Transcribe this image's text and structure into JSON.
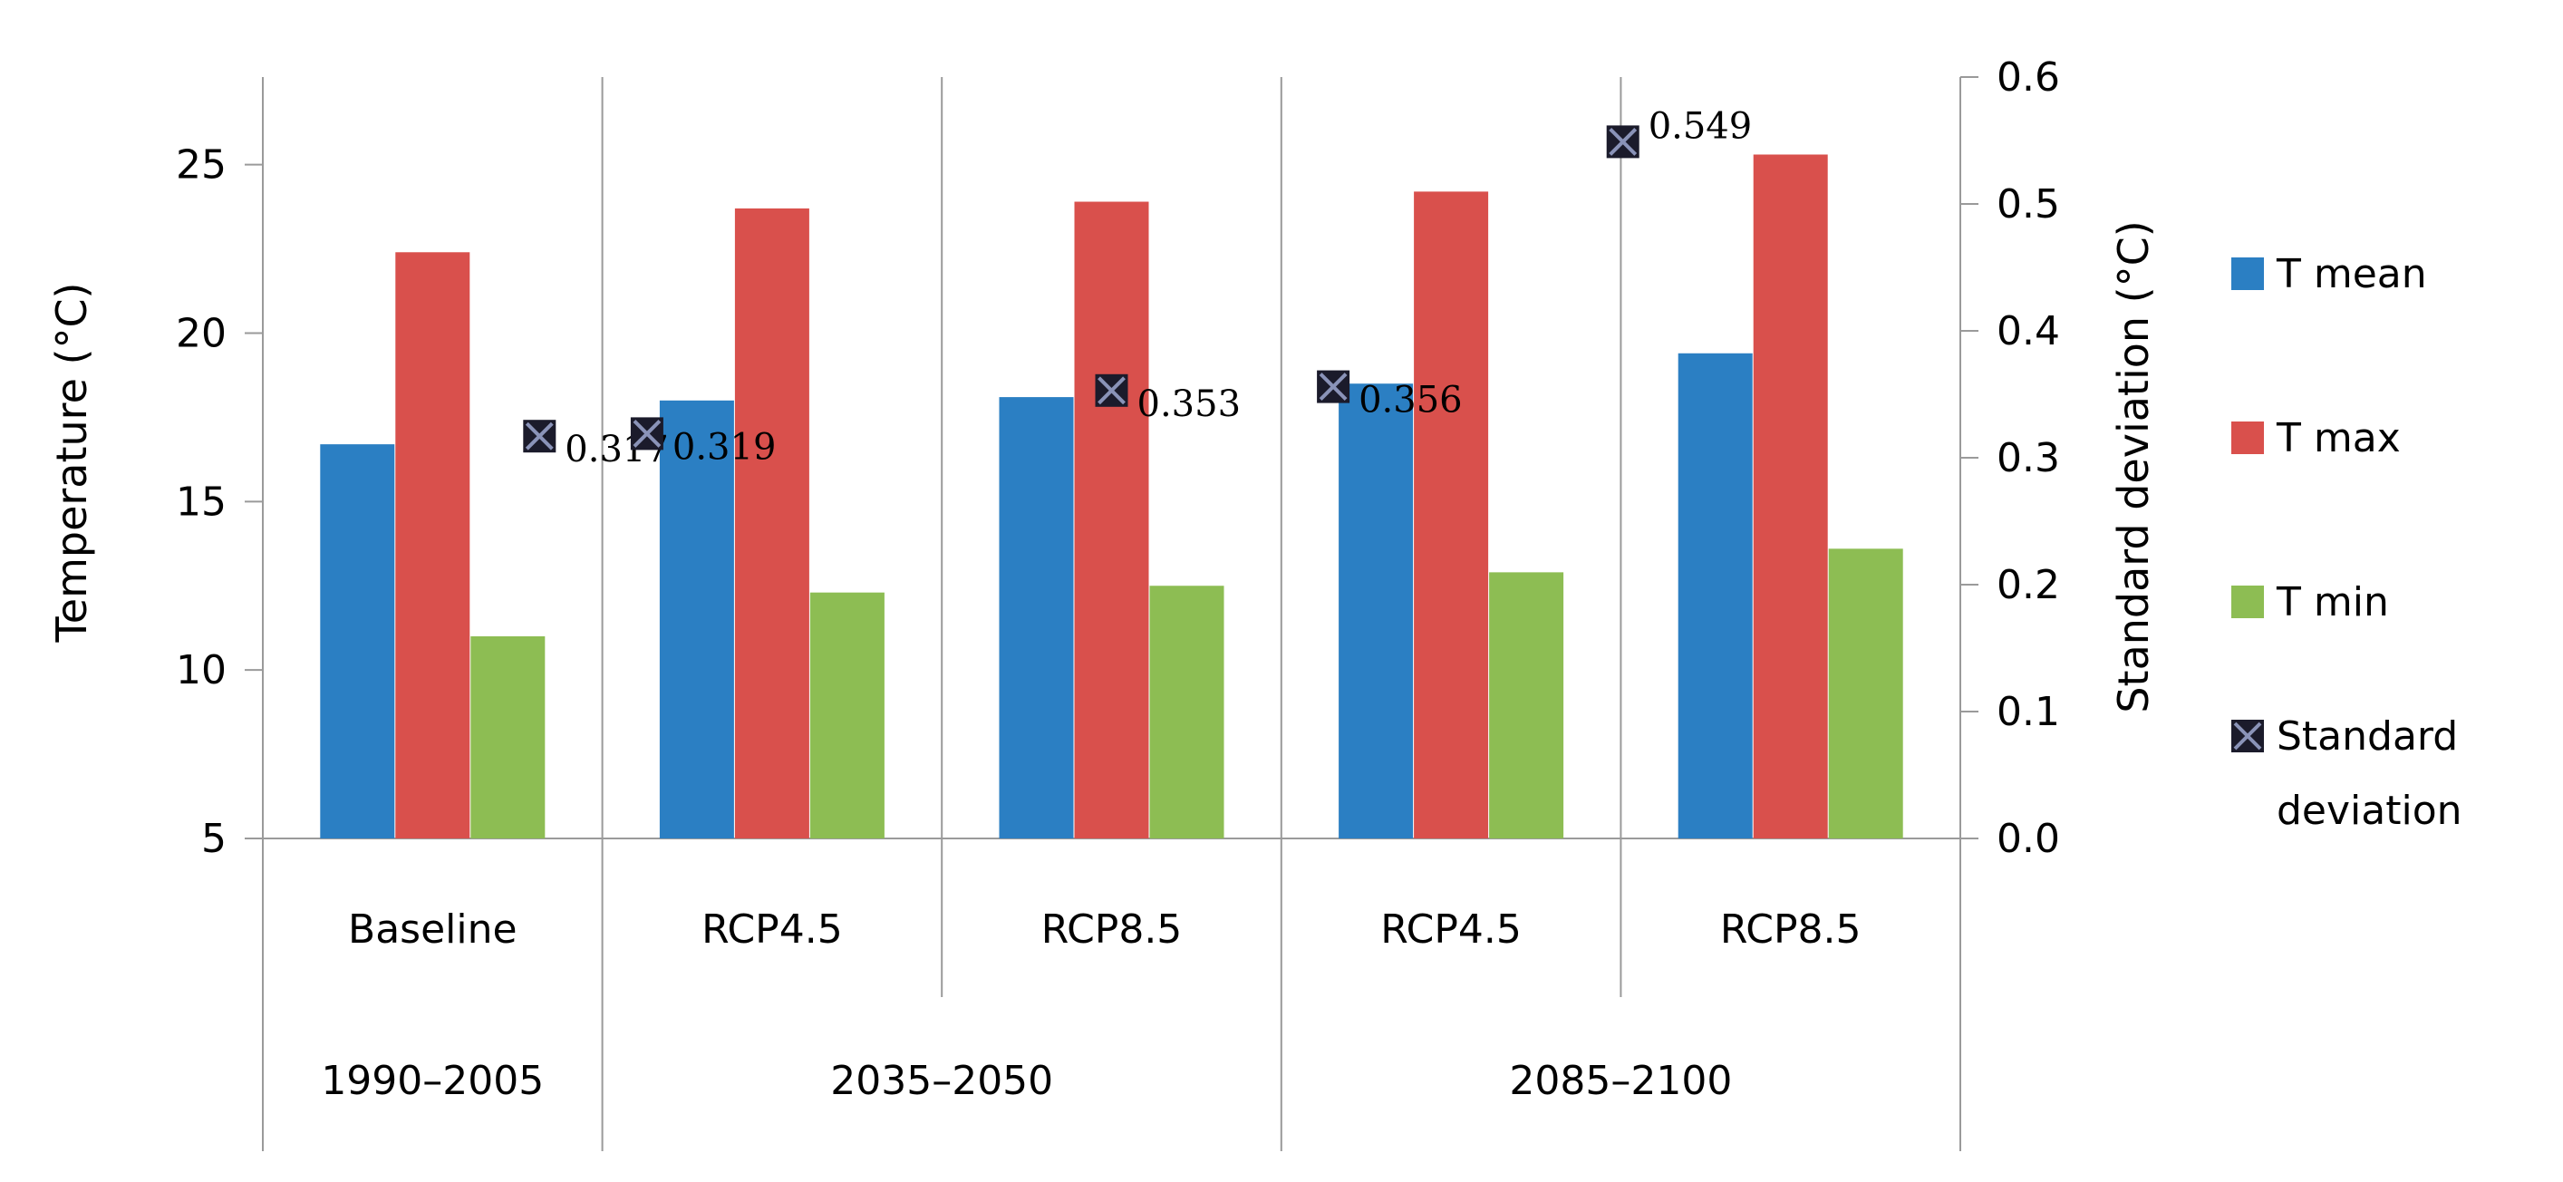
{
  "chart_data": {
    "type": "bar",
    "categories": [
      "Baseline",
      "RCP4.5",
      "RCP8.5",
      "RCP4.5",
      "RCP8.5"
    ],
    "period_groups": [
      {
        "label": "1990–2005",
        "span": 1
      },
      {
        "label": "2035–2050",
        "span": 2
      },
      {
        "label": "2085–2100",
        "span": 2
      }
    ],
    "series": [
      {
        "name": "T mean",
        "color": "#2b7fc3",
        "values": [
          16.7,
          18.0,
          18.1,
          18.5,
          19.4
        ]
      },
      {
        "name": "T max",
        "color": "#d9504c",
        "values": [
          22.4,
          23.7,
          23.9,
          24.2,
          25.3
        ]
      },
      {
        "name": "T min",
        "color": "#8dbd53",
        "values": [
          11.0,
          12.3,
          12.5,
          12.9,
          13.6
        ]
      }
    ],
    "secondary_series": {
      "name": "Standard deviation",
      "type": "scatter",
      "values": [
        0.317,
        0.319,
        0.353,
        0.356,
        0.549
      ],
      "labels": [
        "0.317",
        "0.319",
        "0.353",
        "0.356",
        "0.549"
      ]
    },
    "ylabel": "Temperature (°C)",
    "y2label": "Standard deviation (°C)",
    "ylim": [
      5,
      27.6
    ],
    "yticks": [
      5,
      10,
      15,
      20,
      25
    ],
    "y2lim": [
      0.0,
      0.6
    ],
    "y2ticks": [
      "0.0",
      "0.1",
      "0.2",
      "0.3",
      "0.4",
      "0.5",
      "0.6"
    ],
    "legend": {
      "position": "right",
      "entries": [
        "T mean",
        "T max",
        "T min",
        "Standard deviation"
      ]
    },
    "grid": false
  }
}
